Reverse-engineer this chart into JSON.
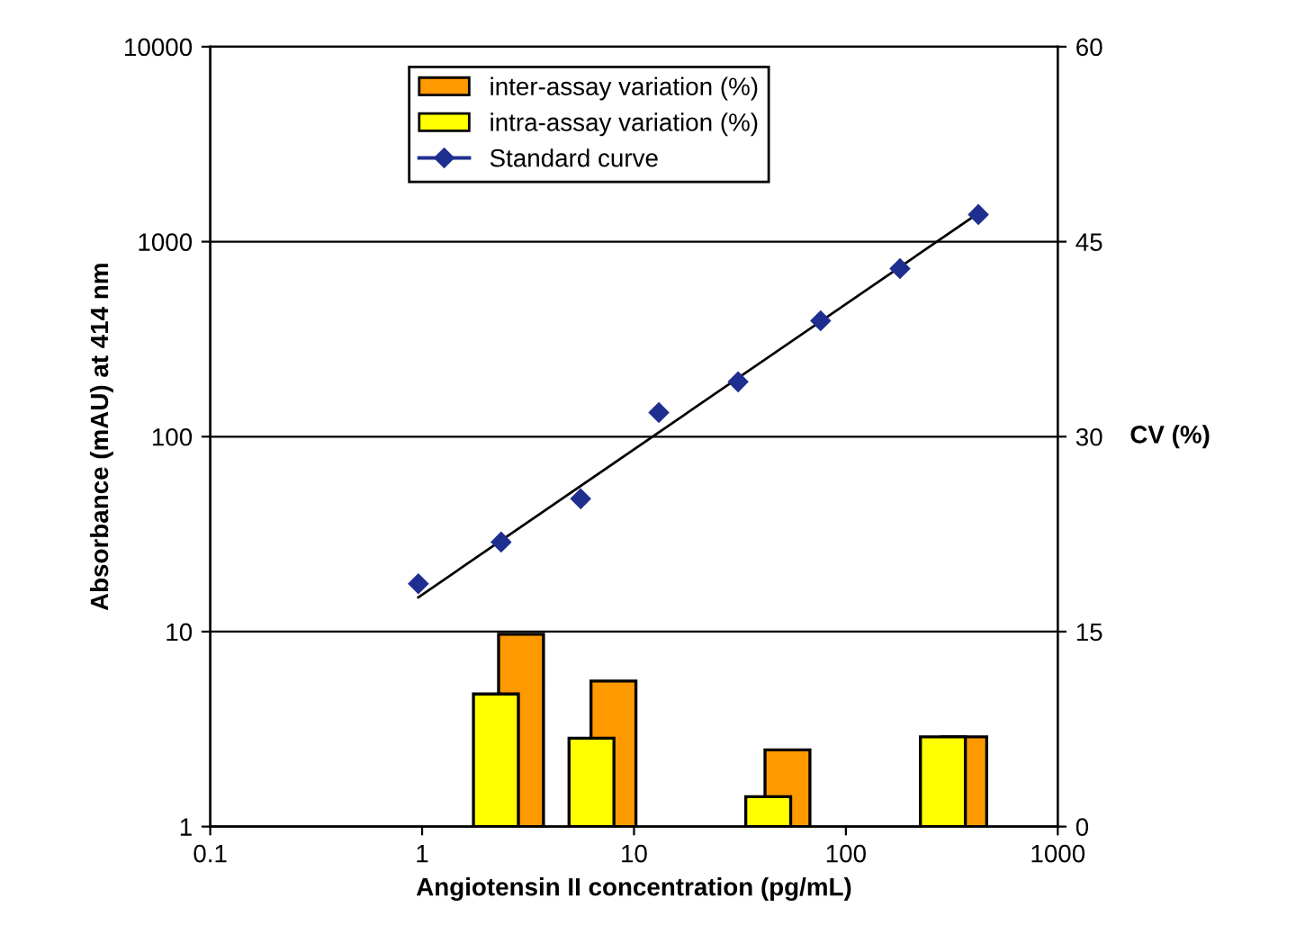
{
  "chart_data": {
    "type": "bar",
    "xlabel": "Angiotensin II concentration (pg/mL)",
    "ylabel": "Absorbance (mAU) at 414 nm",
    "y2label": "CV (%)",
    "log": "xy",
    "xlim": [
      0.1,
      1000
    ],
    "xticks": [
      0.1,
      1,
      10,
      100,
      1000
    ],
    "ylim": [
      1,
      10000
    ],
    "yticks": [
      1,
      10,
      100,
      1000,
      10000
    ],
    "y2lim": [
      0,
      60
    ],
    "y2ticks": [
      0,
      15,
      30,
      45,
      60
    ],
    "grid": "y",
    "legend": "top left",
    "series": [
      {
        "name": "inter-assay variation (%)",
        "axis": "y2",
        "color": "#ff9900",
        "x": [
          2.93,
          8.0,
          53,
          362
        ],
        "values": [
          14.8,
          11.2,
          5.9,
          6.9
        ]
      },
      {
        "name": "intra-assay variation (%)",
        "axis": "y2",
        "color": "#ffff00",
        "x": [
          2.23,
          6.3,
          43,
          287
        ],
        "values": [
          10.2,
          6.8,
          2.3,
          6.9
        ]
      },
      {
        "name": "Standard curve",
        "type": "scatter",
        "color": "#1f2f8f",
        "marker": "diamond",
        "x": [
          0.96,
          2.36,
          5.6,
          13.1,
          31,
          76,
          180,
          422
        ],
        "values": [
          17.6,
          28.8,
          48,
          133,
          191,
          393,
          728,
          1378
        ]
      },
      {
        "type": "line",
        "color": "#000000",
        "line_style": "solid",
        "x": [
          0.96,
          422
        ],
        "values": [
          15,
          1400
        ]
      }
    ]
  }
}
